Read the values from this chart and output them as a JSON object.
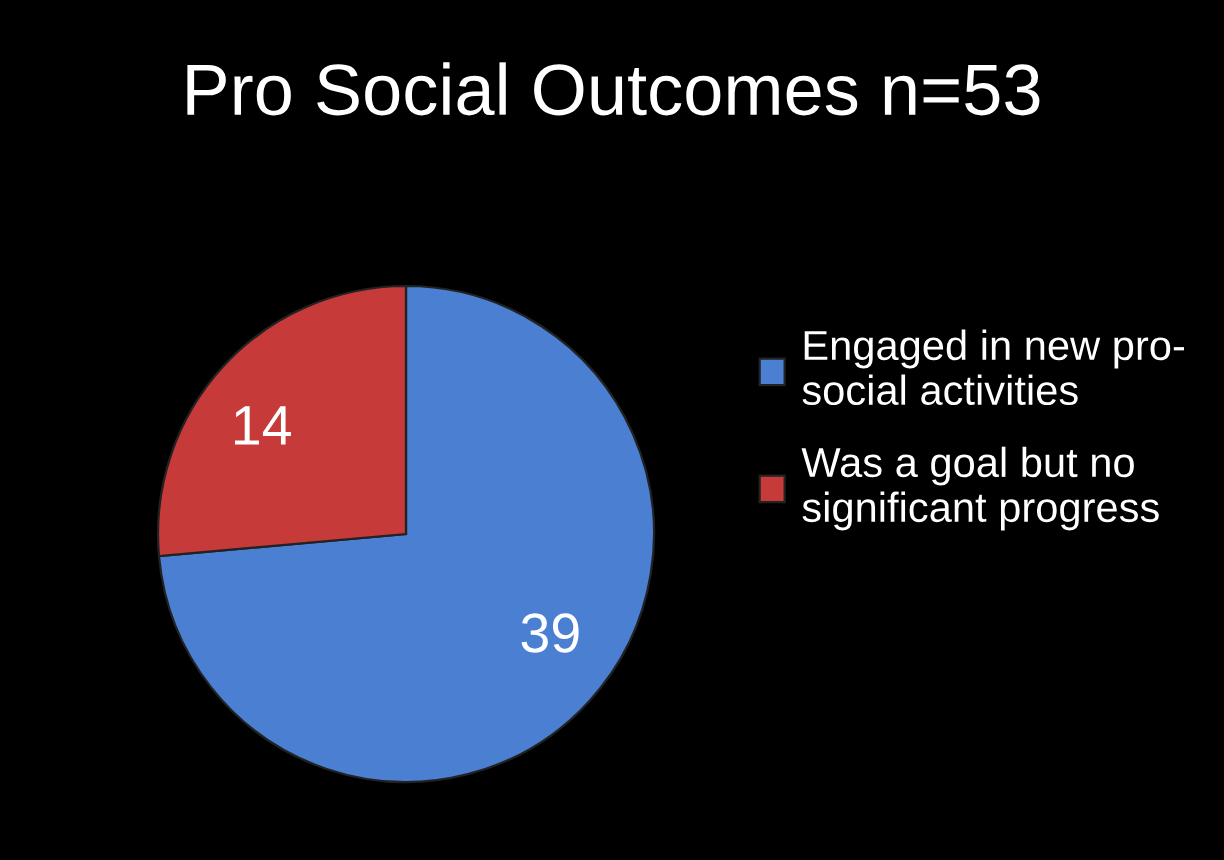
{
  "chart_data": {
    "type": "pie",
    "title": "Pro Social Outcomes n=53",
    "categories": [
      "Engaged in new pro-\nsocial activities",
      "Was a goal but no\nsignificant progress"
    ],
    "values": [
      39,
      14
    ],
    "colors": [
      "#4a7fd2",
      "#c63a3a"
    ],
    "data_labels": true,
    "legend": "right"
  }
}
